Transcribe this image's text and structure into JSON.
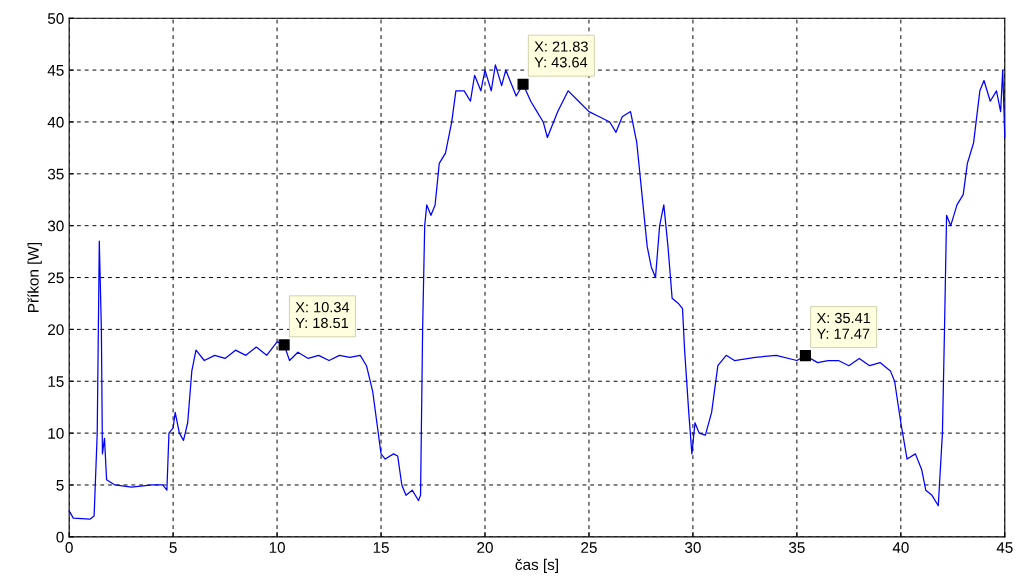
{
  "chart_data": {
    "type": "line",
    "xlabel": "čas [s]",
    "ylabel": "Příkon [W]",
    "xlim": [
      0,
      45
    ],
    "ylim": [
      0,
      50
    ],
    "xticks": [
      0,
      5,
      10,
      15,
      20,
      25,
      30,
      35,
      40,
      45
    ],
    "yticks": [
      0,
      5,
      10,
      15,
      20,
      25,
      30,
      35,
      40,
      45,
      50
    ],
    "grid": true,
    "line_style": "solid",
    "series": [
      {
        "color": "#0000ff",
        "x": [
          0,
          0.2,
          1.0,
          1.2,
          1.35,
          1.45,
          1.55,
          1.6,
          1.7,
          1.8,
          2.2,
          3,
          4,
          4.5,
          4.7,
          4.8,
          5.0,
          5.1,
          5.3,
          5.5,
          5.7,
          5.9,
          6.1,
          6.5,
          7,
          7.5,
          8,
          8.5,
          9,
          9.5,
          10,
          10.34,
          10.6,
          11,
          11.5,
          12,
          12.5,
          13,
          13.5,
          14,
          14.3,
          14.6,
          14.8,
          15.0,
          15.2,
          15.6,
          15.8,
          16.0,
          16.2,
          16.5,
          16.8,
          16.9,
          17.0,
          17.1,
          17.2,
          17.4,
          17.6,
          17.8,
          18.1,
          18.4,
          18.6,
          19,
          19.3,
          19.5,
          19.8,
          20.0,
          20.3,
          20.5,
          20.8,
          21,
          21.5,
          21.83,
          22.2,
          22.5,
          22.8,
          23,
          23.5,
          24,
          24.5,
          25,
          25.5,
          26,
          26.3,
          26.6,
          27,
          27.3,
          27.5,
          27.8,
          28.0,
          28.2,
          28.4,
          28.6,
          28.8,
          29.0,
          29.3,
          29.5,
          29.6,
          29.8,
          29.95,
          30.1,
          30.3,
          30.6,
          30.9,
          31.2,
          31.6,
          32,
          33,
          34,
          35,
          35.41,
          36,
          36.5,
          37,
          37.5,
          38,
          38.5,
          39,
          39.5,
          39.7,
          40,
          40.3,
          40.7,
          41.0,
          41.2,
          41.5,
          41.8,
          42.0,
          42.1,
          42.2,
          42.4,
          42.7,
          43,
          43.2,
          43.5,
          43.8,
          44.0,
          44.3,
          44.6,
          44.8,
          44.9,
          45
        ],
        "values": [
          2.5,
          1.8,
          1.7,
          2.0,
          10,
          28.5,
          20,
          8,
          9.5,
          5.5,
          5.0,
          4.8,
          5.0,
          5.0,
          4.5,
          10,
          10.5,
          12,
          10,
          9.3,
          11,
          16,
          18,
          17,
          17.5,
          17.2,
          18,
          17.5,
          18.3,
          17.5,
          18.8,
          18.51,
          17,
          17.8,
          17.2,
          17.5,
          17,
          17.5,
          17.3,
          17.5,
          16.5,
          14,
          11,
          8,
          7.5,
          8,
          7.8,
          5,
          4.0,
          4.5,
          3.5,
          4,
          20,
          30,
          32,
          31,
          32,
          36,
          37,
          40,
          43,
          43,
          42,
          44.5,
          43,
          45,
          43,
          45.5,
          43.5,
          45,
          42.5,
          43.64,
          42,
          41,
          40,
          38.5,
          41,
          43,
          42,
          41,
          40.5,
          40,
          39,
          40.5,
          41,
          38,
          34,
          28,
          26,
          25,
          30,
          32,
          28,
          23,
          22.5,
          22,
          18,
          12,
          8,
          11,
          10,
          9.8,
          12,
          16.5,
          17.5,
          17,
          17.3,
          17.5,
          17,
          17.47,
          16.8,
          17,
          17,
          16.5,
          17.2,
          16.5,
          16.8,
          16,
          15,
          11,
          7.5,
          8,
          6.5,
          4.5,
          4,
          3,
          10,
          20,
          31,
          30,
          32,
          33,
          36,
          38,
          43,
          44,
          42,
          43,
          41,
          45,
          38.5
        ]
      }
    ],
    "annotations": [
      {
        "text": "X: 10.34\nY: 18.51",
        "x": 10.34,
        "y": 18.51
      },
      {
        "text": "X: 21.83\nY: 43.64",
        "x": 21.83,
        "y": 43.64
      },
      {
        "text": "X: 35.41\nY: 17.47",
        "x": 35.41,
        "y": 17.47
      }
    ]
  }
}
